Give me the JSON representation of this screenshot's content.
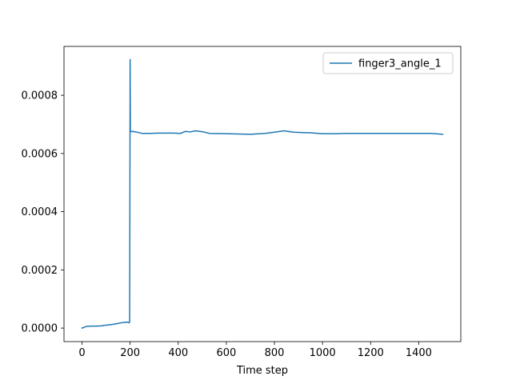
{
  "chart_data": {
    "type": "line",
    "title": "",
    "xlabel": "Time step",
    "ylabel": "",
    "xlim": [
      -75,
      1575
    ],
    "ylim": [
      -4.65e-05,
      0.000968
    ],
    "x_ticks": [
      0,
      200,
      400,
      600,
      800,
      1000,
      1200,
      1400
    ],
    "x_tick_labels": [
      "0",
      "200",
      "400",
      "600",
      "800",
      "1000",
      "1200",
      "1400"
    ],
    "y_ticks": [
      0.0,
      0.0002,
      0.0004,
      0.0006,
      0.0008
    ],
    "y_tick_labels": [
      "0.0000",
      "0.0002",
      "0.0004",
      "0.0006",
      "0.0008"
    ],
    "grid": false,
    "legend_position": "top-right",
    "series": [
      {
        "name": "finger3_angle_1",
        "color": "#1f77b4",
        "points": [
          [
            0,
            0.0
          ],
          [
            10,
            3.3e-06
          ],
          [
            20,
            6e-06
          ],
          [
            40,
            6.7e-06
          ],
          [
            60,
            6.9e-06
          ],
          [
            80,
            7.5e-06
          ],
          [
            90,
            9.2e-06
          ],
          [
            110,
            1.1e-05
          ],
          [
            130,
            1.3e-05
          ],
          [
            150,
            1.6e-05
          ],
          [
            170,
            1.9e-05
          ],
          [
            190,
            2.05e-05
          ],
          [
            196,
            1.8e-05
          ],
          [
            198,
            2.15e-05
          ],
          [
            199,
            0.00045
          ],
          [
            200,
            0.000923
          ],
          [
            201,
            0.000675
          ],
          [
            210,
            0.000676
          ],
          [
            230,
            0.000673
          ],
          [
            250,
            0.000669
          ],
          [
            280,
            0.000669
          ],
          [
            320,
            0.00067
          ],
          [
            380,
            0.00067
          ],
          [
            410,
            0.000669
          ],
          [
            430,
            0.000676
          ],
          [
            450,
            0.000674
          ],
          [
            470,
            0.000678
          ],
          [
            500,
            0.000675
          ],
          [
            530,
            0.000669
          ],
          [
            600,
            0.000668
          ],
          [
            650,
            0.000667
          ],
          [
            700,
            0.000666
          ],
          [
            760,
            0.000669
          ],
          [
            800,
            0.000673
          ],
          [
            840,
            0.000678
          ],
          [
            880,
            0.000673
          ],
          [
            950,
            0.000671
          ],
          [
            1000,
            0.000668
          ],
          [
            1050,
            0.000668
          ],
          [
            1100,
            0.000669
          ],
          [
            1200,
            0.000669
          ],
          [
            1300,
            0.000669
          ],
          [
            1400,
            0.000669
          ],
          [
            1450,
            0.000669
          ],
          [
            1500,
            0.000666
          ]
        ]
      }
    ]
  }
}
